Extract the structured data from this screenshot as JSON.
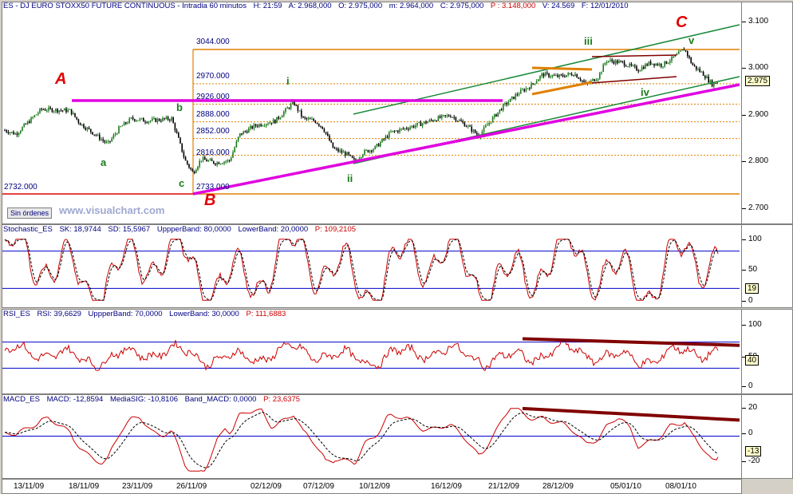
{
  "main": {
    "header": {
      "symbol": "ES - DJ EURO STOXX50 FUTURE CONTINUOUS - Intradia 60 minutos",
      "H": "H: 21:59",
      "A": "A: 2.968,000",
      "O": "O: 2.975,000",
      "m": "m: 2.964,000",
      "C": "C: 2.975,000",
      "P": "P : 3.148,000",
      "V": "V: 24.569",
      "date": "F: 12/01/2010"
    },
    "current_value": "2.975",
    "fib_levels": [
      "3044.000",
      "2970.000",
      "2926.000",
      "2888.000",
      "2852.000",
      "2816.000",
      "2733.000"
    ],
    "low_label": "2732.000",
    "waves": {
      "A": "A",
      "B": "B",
      "C": "C",
      "a": "a",
      "b": "b",
      "c": "c",
      "i": "i",
      "ii": "ii",
      "iii": "iii",
      "iv": "iv",
      "v": "v"
    },
    "order_button": "Sin órdenes",
    "brand": "www.visualchart.com"
  },
  "stochastic": {
    "header": {
      "name": "Stochastic_ES",
      "sk": "SK: 18,9744",
      "sd": "SD: 15,5967",
      "upper": "UppperBand: 80,0000",
      "lower": "LowerBand: 20,0000",
      "p": "P: 109,2105"
    },
    "current_value": "19"
  },
  "rsi": {
    "header": {
      "name": "RSI_ES",
      "rsi": "RSI: 39,6629",
      "upper": "UppperBand: 70,0000",
      "lower": "LowerBand: 30,0000",
      "p": "P: 111,6883"
    },
    "current_value": "40"
  },
  "macd": {
    "header": {
      "name": "MACD_ES",
      "macd": "MACD: -12,8594",
      "sig": "MediaSIG: -10,8106",
      "band": "Band_MACD: 0,0000",
      "p": "P: 23,6375"
    },
    "current_value": "-13"
  },
  "colors": {
    "candle_up": "#1a7a1a",
    "candle_down": "#000000",
    "fib": "#e08000",
    "channel": "#1a8a3a",
    "trendline": "#e000e0",
    "indicator": "#cc0000",
    "band": "#0000cc",
    "divergence": "#800000"
  },
  "chart_data": [
    {
      "type": "candlestick",
      "title": "ES - DJ EURO STOXX50 FUTURE CONTINUOUS - Intradia 60 minutos",
      "x_categories": [
        "13/11/09",
        "18/11/09",
        "23/11/09",
        "26/11/09",
        "02/12/09",
        "07/12/09",
        "10/12/09",
        "16/12/09",
        "21/12/09",
        "28/12/09",
        "05/01/10",
        "08/01/10"
      ],
      "y_ticks": [
        "3.100",
        "3.000",
        "2.900",
        "2.800",
        "2.700"
      ],
      "ylim": [
        2680,
        3130
      ],
      "approx_close_path": [
        {
          "x": "13/11/09",
          "y": 2870
        },
        {
          "x": "18/11/09",
          "y": 2915
        },
        {
          "x": "20/11/09",
          "y": 2840
        },
        {
          "x": "23/11/09",
          "y": 2890
        },
        {
          "x": "25/11/09",
          "y": 2895
        },
        {
          "x": "26/11/09",
          "y": 2760
        },
        {
          "x": "27/11/09",
          "y": 2800
        },
        {
          "x": "02/12/09",
          "y": 2880
        },
        {
          "x": "04/12/09",
          "y": 2935
        },
        {
          "x": "07/12/09",
          "y": 2830
        },
        {
          "x": "09/12/09",
          "y": 2800
        },
        {
          "x": "10/12/09",
          "y": 2860
        },
        {
          "x": "16/12/09",
          "y": 2895
        },
        {
          "x": "18/12/09",
          "y": 2860
        },
        {
          "x": "21/12/09",
          "y": 2900
        },
        {
          "x": "23/12/09",
          "y": 2970
        },
        {
          "x": "28/12/09",
          "y": 2995
        },
        {
          "x": "30/12/09",
          "y": 2985
        },
        {
          "x": "05/01/10",
          "y": 3010
        },
        {
          "x": "07/01/10",
          "y": 3005
        },
        {
          "x": "08/01/10",
          "y": 3045
        },
        {
          "x": "12/01/10",
          "y": 2975
        }
      ],
      "fibonacci_levels": [
        3044,
        2970,
        2926,
        2888,
        2852,
        2816,
        2733
      ]
    },
    {
      "type": "line",
      "title": "Stochastic_ES",
      "ylim": [
        0,
        100
      ],
      "y_ticks": [
        "100",
        "50",
        "0"
      ],
      "bands": [
        80,
        20
      ],
      "series": [
        {
          "name": "SK",
          "last": 18.9744
        },
        {
          "name": "SD",
          "last": 15.5967
        }
      ]
    },
    {
      "type": "line",
      "title": "RSI_ES",
      "ylim": [
        0,
        100
      ],
      "y_ticks": [
        "100",
        "50",
        "0"
      ],
      "bands": [
        70,
        30
      ],
      "series": [
        {
          "name": "RSI",
          "last": 39.6629
        }
      ]
    },
    {
      "type": "line",
      "title": "MACD_ES",
      "ylim": [
        -25,
        20
      ],
      "y_ticks": [
        "20",
        "0",
        "-20"
      ],
      "series": [
        {
          "name": "MACD",
          "last": -12.8594
        },
        {
          "name": "MediaSIG",
          "last": -10.8106
        }
      ]
    }
  ]
}
